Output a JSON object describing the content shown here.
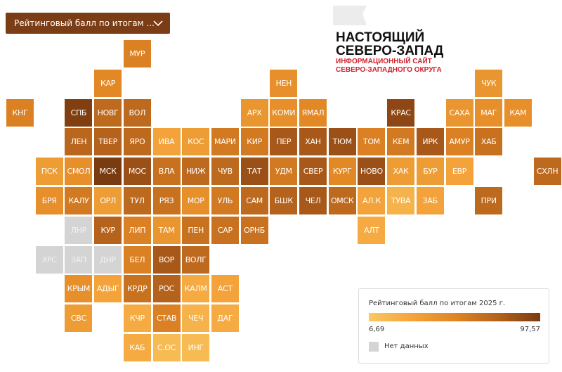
{
  "dropdown": {
    "label": "Рейтинговый балл по итогам ..."
  },
  "logo": {
    "line1": "НАСТОЯЩИЙ",
    "line2": "СЕВЕРО-ЗАПАД",
    "sub1": "ИНФОРМАЦИОННЫЙ САЙТ",
    "sub2": "СЕВЕРО-ЗАПАДНОГО ОКРУГА"
  },
  "tiles": [
    {
      "label": "КНГ",
      "value": 55
    },
    {
      "label": "ПСК",
      "value": 35
    },
    {
      "label": "БРЯ",
      "value": 45
    },
    {
      "label": "ХРС",
      "value": null
    },
    {
      "label": "СПБ",
      "value": 95
    },
    {
      "label": "ЛЕН",
      "value": 72
    },
    {
      "label": "СМОЛ",
      "value": 45
    },
    {
      "label": "КАЛУ",
      "value": 60
    },
    {
      "label": "ЛНР",
      "value": null
    },
    {
      "label": "ЗАП",
      "value": null
    },
    {
      "label": "КРЫМ",
      "value": 45
    },
    {
      "label": "СВС",
      "value": 35
    },
    {
      "label": "КАР",
      "value": 50
    },
    {
      "label": "НОВГ",
      "value": 70
    },
    {
      "label": "ТВЕР",
      "value": 75
    },
    {
      "label": "МСК",
      "value": 97
    },
    {
      "label": "ОРЛ",
      "value": 35
    },
    {
      "label": "КУР",
      "value": 75
    },
    {
      "label": "ДНР",
      "value": null
    },
    {
      "label": "АДЫГ",
      "value": 30
    },
    {
      "label": "МУР",
      "value": 55
    },
    {
      "label": "ВОЛ",
      "value": 70
    },
    {
      "label": "ЯРО",
      "value": 70
    },
    {
      "label": "МОС",
      "value": 85
    },
    {
      "label": "ТУЛ",
      "value": 70
    },
    {
      "label": "ЛИП",
      "value": 55
    },
    {
      "label": "БЕЛ",
      "value": 55
    },
    {
      "label": "КРДР",
      "value": 65
    },
    {
      "label": "КЧР",
      "value": 25
    },
    {
      "label": "КАБ",
      "value": 25
    },
    {
      "label": "ИВА",
      "value": 30
    },
    {
      "label": "ВЛА",
      "value": 65
    },
    {
      "label": "РЯЗ",
      "value": 65
    },
    {
      "label": "ТАМ",
      "value": 40
    },
    {
      "label": "ВОР",
      "value": 80
    },
    {
      "label": "РОС",
      "value": 75
    },
    {
      "label": "СТАВ",
      "value": 55
    },
    {
      "label": "С.ОС",
      "value": 15
    },
    {
      "label": "КОС",
      "value": 35
    },
    {
      "label": "НИЖ",
      "value": 70
    },
    {
      "label": "МОР",
      "value": 45
    },
    {
      "label": "ПЕН",
      "value": 65
    },
    {
      "label": "ВОЛГ",
      "value": 70
    },
    {
      "label": "КАЛМ",
      "value": 25
    },
    {
      "label": "ЧЕЧ",
      "value": 20
    },
    {
      "label": "ИНГ",
      "value": 15
    },
    {
      "label": "МАРИ",
      "value": 60
    },
    {
      "label": "ЧУВ",
      "value": 70
    },
    {
      "label": "УЛЬ",
      "value": 60
    },
    {
      "label": "САР",
      "value": 65
    },
    {
      "label": "АСТ",
      "value": 30
    },
    {
      "label": "ДАГ",
      "value": 25
    },
    {
      "label": "АРХ",
      "value": 40
    },
    {
      "label": "КИР",
      "value": 60
    },
    {
      "label": "ТАТ",
      "value": 85
    },
    {
      "label": "САМ",
      "value": 70
    },
    {
      "label": "ОРНБ",
      "value": 65
    },
    {
      "label": "НЕН",
      "value": 45
    },
    {
      "label": "КОМИ",
      "value": 45
    },
    {
      "label": "ПЕР",
      "value": 80
    },
    {
      "label": "УДМ",
      "value": 60
    },
    {
      "label": "БШК",
      "value": 75
    },
    {
      "label": "ЯМАЛ",
      "value": 50
    },
    {
      "label": "ХАН",
      "value": 80
    },
    {
      "label": "СВЕР",
      "value": 80
    },
    {
      "label": "ЧЕЛ",
      "value": 80
    },
    {
      "label": "ТЮМ",
      "value": 85
    },
    {
      "label": "КУРГ",
      "value": 50
    },
    {
      "label": "ОМСК",
      "value": 70
    },
    {
      "label": "ТОМ",
      "value": 55
    },
    {
      "label": "НОВО",
      "value": 85
    },
    {
      "label": "АЛ.К",
      "value": 30
    },
    {
      "label": "АЛТ",
      "value": 25
    },
    {
      "label": "КРАС",
      "value": 90
    },
    {
      "label": "КЕМ",
      "value": 60
    },
    {
      "label": "ХАК",
      "value": 35
    },
    {
      "label": "ТУВА",
      "value": 20
    },
    {
      "label": "ИРК",
      "value": 80
    },
    {
      "label": "БУР",
      "value": 35
    },
    {
      "label": "ЗАБ",
      "value": 30
    },
    {
      "label": "САХА",
      "value": 40
    },
    {
      "label": "АМУР",
      "value": 55
    },
    {
      "label": "ЕВР",
      "value": 30
    },
    {
      "label": "ЧУК",
      "value": 40
    },
    {
      "label": "МАГ",
      "value": 45
    },
    {
      "label": "ХАБ",
      "value": 65
    },
    {
      "label": "ПРИ",
      "value": 70
    },
    {
      "label": "КАМ",
      "value": 45
    },
    {
      "label": "СХЛН",
      "value": 70
    }
  ],
  "legend": {
    "title": "Рейтинговый балл по итогам 2025 г.",
    "min": {
      "value": 6.69,
      "label": "6,69"
    },
    "max": {
      "value": 97.57,
      "label": "97,57"
    },
    "no_data": "Нет данных",
    "colors": [
      "#fbc862",
      "#f3a43a",
      "#e08624",
      "#b5621c",
      "#7a3a10"
    ],
    "no_data_color": "#d4d4d4"
  }
}
